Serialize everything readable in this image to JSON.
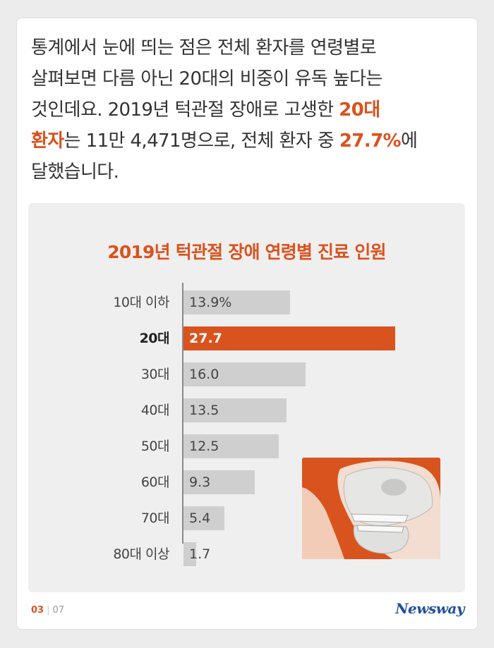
{
  "intro": {
    "line1": "통계에서 눈에 띄는 점은 전체 환자를 연령별로",
    "line2": "살펴보면 다름 아닌 20대의 비중이 유독 높다는",
    "line3": "것인데요. 2019년 턱관절 장애로 고생한 ",
    "line3_hl": "20대",
    "line4_hl": "환자",
    "line4": "는 11만 4,471명으로, 전체 환자 중 ",
    "line4_hl2": "27.7%",
    "line4_end": "에",
    "line5": "달했습니다."
  },
  "chart_data": {
    "type": "bar",
    "orientation": "horizontal",
    "title": "2019년 턱관절 장애 연령별 진료 인원",
    "categories": [
      "10대 이하",
      "20대",
      "30대",
      "40대",
      "50대",
      "60대",
      "70대",
      "80대 이상"
    ],
    "values": [
      13.9,
      27.7,
      16.0,
      13.5,
      12.5,
      9.3,
      5.4,
      1.7
    ],
    "value_labels": [
      "13.9%",
      "27.7",
      "16.0",
      "13.5",
      "12.5",
      "9.3",
      "5.4",
      "1.7"
    ],
    "highlight_index": 1,
    "xlim": [
      0,
      28
    ],
    "colors": {
      "bar": "#cfcfcf",
      "highlight": "#d9531e"
    }
  },
  "illustration": {
    "icon": "jaw-skull-illustration",
    "background": "#d9531e"
  },
  "footer": {
    "page_current": "03",
    "page_total": "07",
    "brand": "Newsway"
  }
}
